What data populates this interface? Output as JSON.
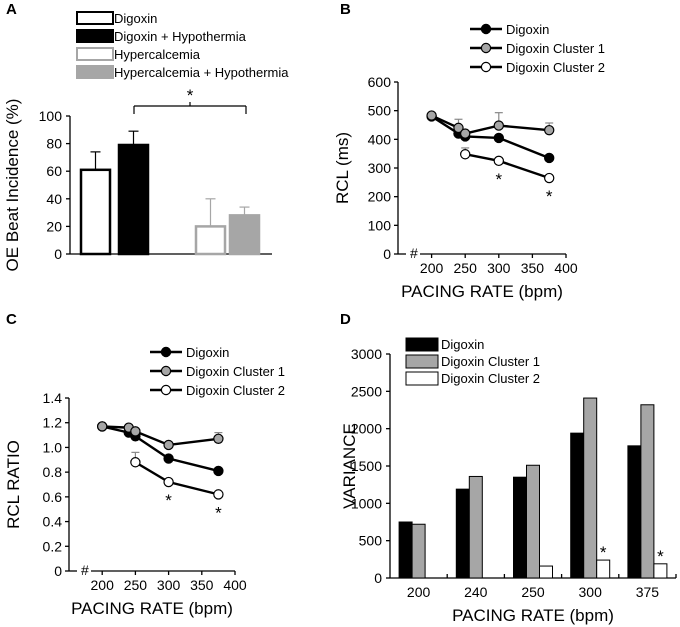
{
  "chart_data": [
    {
      "panel": "A",
      "type": "bar",
      "ylabel": "OE Beat Incidence (%)",
      "ylim": [
        0,
        100
      ],
      "yticks": [
        0,
        20,
        40,
        60,
        80,
        100
      ],
      "series": [
        {
          "name": "Digoxin",
          "value": 61,
          "error": 13,
          "fill": "#ffffff",
          "stroke": "#000000"
        },
        {
          "name": "Digoxin + Hypothermia",
          "value": 79,
          "error": 10,
          "fill": "#000000",
          "stroke": "#000000"
        },
        {
          "name": "Hypercalcemia",
          "value": 20,
          "error": 20,
          "fill": "#ffffff",
          "stroke": "#a6a6a6"
        },
        {
          "name": "Hypercalcemia + Hypothermia",
          "value": 28,
          "error": 6,
          "fill": "#a6a6a6",
          "stroke": "#a6a6a6"
        }
      ],
      "annotations": [
        {
          "text": "*",
          "between": [
            "Digoxin + Hypothermia",
            "Hypercalcemia + Hypothermia"
          ]
        }
      ]
    },
    {
      "panel": "B",
      "type": "line",
      "xlabel": "PACING RATE (bpm)",
      "ylabel": "RCL (ms)",
      "xlim": [
        150,
        400
      ],
      "ylim": [
        0,
        600
      ],
      "xticks": [
        200,
        250,
        300,
        350,
        400
      ],
      "yticks": [
        0,
        100,
        200,
        300,
        400,
        500,
        600
      ],
      "series": [
        {
          "name": "Digoxin",
          "x": [
            200,
            240,
            250,
            300,
            375
          ],
          "y": [
            480,
            420,
            410,
            405,
            335
          ],
          "error": [
            0,
            0,
            0,
            0,
            0
          ],
          "marker": "#000000"
        },
        {
          "name": "Digoxin Cluster 1",
          "x": [
            200,
            240,
            250,
            300,
            375
          ],
          "y": [
            483,
            440,
            420,
            448,
            432
          ],
          "error": [
            0,
            30,
            0,
            45,
            25
          ],
          "marker": "#a6a6a6"
        },
        {
          "name": "Digoxin Cluster 2",
          "x": [
            250,
            300,
            375
          ],
          "y": [
            348,
            325,
            265
          ],
          "error": [
            22,
            0,
            0
          ],
          "marker": "#ffffff"
        }
      ],
      "annotations": [
        {
          "text": "*",
          "x": 300
        },
        {
          "text": "*",
          "x": 375
        }
      ]
    },
    {
      "panel": "C",
      "type": "line",
      "xlabel": "PACING RATE (bpm)",
      "ylabel": "RCL RATIO",
      "xlim": [
        150,
        400
      ],
      "ylim": [
        0,
        1.4
      ],
      "xticks": [
        200,
        250,
        300,
        350,
        400
      ],
      "yticks": [
        "0",
        "0.2",
        "0.4",
        "0.6",
        "0.8",
        "1.0",
        "1.2",
        "1.4"
      ],
      "series": [
        {
          "name": "Digoxin",
          "x": [
            200,
            240,
            250,
            300,
            375
          ],
          "y": [
            1.17,
            1.12,
            1.09,
            0.91,
            0.81
          ],
          "error": [
            0,
            0,
            0,
            0,
            0
          ],
          "marker": "#000000"
        },
        {
          "name": "Digoxin Cluster 1",
          "x": [
            200,
            240,
            250,
            300,
            375
          ],
          "y": [
            1.17,
            1.16,
            1.13,
            1.02,
            1.07
          ],
          "error": [
            0,
            0,
            0,
            0,
            0.05
          ],
          "marker": "#a6a6a6"
        },
        {
          "name": "Digoxin Cluster 2",
          "x": [
            250,
            300,
            375
          ],
          "y": [
            0.88,
            0.72,
            0.62
          ],
          "error": [
            0.08,
            0,
            0
          ],
          "marker": "#ffffff"
        }
      ],
      "annotations": [
        {
          "text": "*",
          "x": 300
        },
        {
          "text": "*",
          "x": 375
        }
      ]
    },
    {
      "panel": "D",
      "type": "bar",
      "xlabel": "PACING RATE (bpm)",
      "ylabel": "VARIANCE",
      "ylim": [
        0,
        3000
      ],
      "yticks": [
        0,
        500,
        1000,
        1500,
        2000,
        2500,
        3000
      ],
      "categories": [
        "200",
        "240",
        "250",
        "300",
        "375"
      ],
      "series": [
        {
          "name": "Digoxin",
          "values": [
            750,
            1190,
            1350,
            1940,
            1770
          ],
          "fill": "#000000"
        },
        {
          "name": "Digoxin Cluster 1",
          "values": [
            720,
            1360,
            1510,
            2410,
            2320
          ],
          "fill": "#a6a6a6"
        },
        {
          "name": "Digoxin Cluster 2",
          "values": [
            null,
            null,
            160,
            240,
            190
          ],
          "fill": "#ffffff"
        }
      ],
      "annotations": [
        {
          "text": "*",
          "category": "300"
        },
        {
          "text": "*",
          "category": "375"
        }
      ]
    }
  ],
  "labels": {
    "break_mark": "#"
  }
}
